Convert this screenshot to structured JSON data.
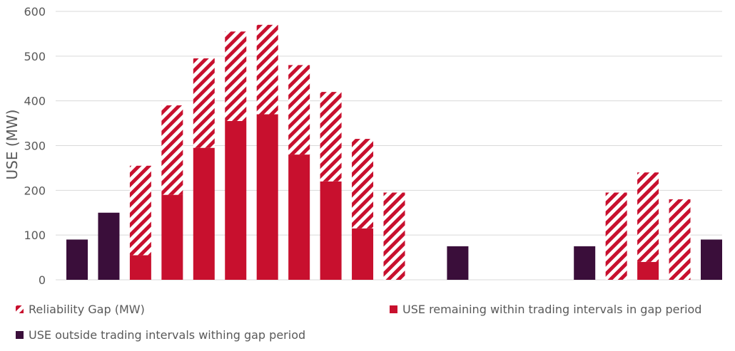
{
  "chart_data": {
    "type": "bar",
    "stacked": true,
    "ylabel": "USE (MW)",
    "xlabel": "",
    "ylim": [
      0,
      600
    ],
    "yticks": [
      0,
      100,
      200,
      300,
      400,
      500,
      600
    ],
    "grid": true,
    "legend_position": "bottom",
    "categories": [
      "",
      "",
      "",
      "",
      "",
      "",
      "",
      "",
      "",
      "",
      "",
      "",
      "",
      "",
      "",
      "",
      "",
      "",
      "",
      "",
      ""
    ],
    "series": [
      {
        "name": "USE outside trading intervals withing gap period",
        "color": "#3A0E3A",
        "values": [
          90,
          150,
          0,
          0,
          0,
          0,
          0,
          0,
          0,
          0,
          0,
          0,
          75,
          0,
          0,
          0,
          75,
          0,
          0,
          0,
          90
        ]
      },
      {
        "name": "USE remaining within trading intervals in gap period",
        "color": "#C8102E",
        "values": [
          0,
          0,
          55,
          190,
          295,
          355,
          370,
          280,
          220,
          115,
          0,
          0,
          0,
          0,
          0,
          0,
          0,
          0,
          40,
          0,
          0
        ]
      },
      {
        "name": "Reliability Gap (MW)",
        "color": "#C8102E",
        "pattern": "hatch",
        "values": [
          0,
          0,
          200,
          200,
          200,
          200,
          200,
          200,
          200,
          200,
          195,
          0,
          0,
          0,
          0,
          0,
          0,
          195,
          200,
          180,
          0
        ]
      }
    ]
  }
}
